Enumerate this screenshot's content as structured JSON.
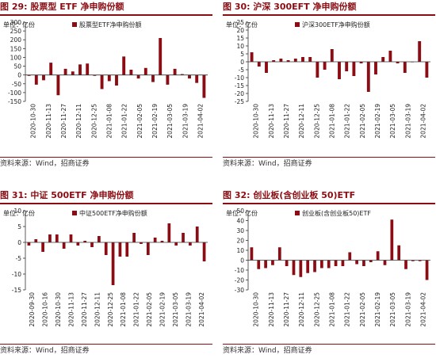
{
  "charts": [
    {
      "figure_title": "图 29:  股票型 ETF 净申购份额",
      "source": "资料来源：Wind，招商证券",
      "chart_data": {
        "type": "bar",
        "unit_label": "单位：亿份",
        "series": [
          {
            "name": "股票型ETF净申购份额",
            "color": "#8b0c12"
          }
        ],
        "yticks": [
          -150,
          -100,
          -50,
          0,
          50,
          100,
          150,
          200,
          250,
          300
        ],
        "ylim": [
          -150,
          300
        ],
        "xtick_labels": [
          "2020-10-30",
          "2020-11-13",
          "2020-11-27",
          "2020-12-11",
          "2020-12-25",
          "2021-01-08",
          "2021-01-22",
          "2021-02-05",
          "2021-02-19",
          "2021-03-05",
          "2021-03-19",
          "2021-04-02"
        ],
        "values": [
          -5,
          -55,
          -30,
          70,
          -115,
          35,
          20,
          60,
          65,
          -5,
          -80,
          -35,
          -60,
          105,
          30,
          -20,
          40,
          -40,
          210,
          -55,
          35,
          5,
          -20,
          -45,
          -130
        ]
      }
    },
    {
      "figure_title": "图 30:  沪深 300EFT 净申购份额",
      "source": "资料来源：Wind，招商证券",
      "chart_data": {
        "type": "bar",
        "unit_label": "单位：亿份",
        "series": [
          {
            "name": "沪深300ETF净申购份额",
            "color": "#8b0c12"
          }
        ],
        "yticks": [
          -25,
          -20,
          -15,
          -10,
          -5,
          0,
          5,
          10,
          15,
          20,
          25
        ],
        "ylim": [
          -25,
          25
        ],
        "xtick_labels": [
          "2020-10-30",
          "2020-11-13",
          "2020-11-27",
          "2020-12-11",
          "2020-12-25",
          "2021-01-08",
          "2021-01-22",
          "2021-02-05",
          "2021-02-19",
          "2021-03-05",
          "2021-03-19",
          "2021-04-02"
        ],
        "values": [
          6,
          -3,
          -7,
          1,
          2,
          1,
          2,
          3,
          3,
          -10,
          -5,
          8,
          -11,
          -6,
          -9,
          -1,
          -19,
          -8,
          3,
          7,
          -1,
          -7,
          0,
          13,
          -10
        ]
      }
    },
    {
      "figure_title": "图 31:  中证 500ETF 净申购份额",
      "source": "资料来源：Wind，招商证券",
      "chart_data": {
        "type": "bar",
        "unit_label": "单位：亿份",
        "series": [
          {
            "name": "中证500ETF净申购份额",
            "color": "#8b0c12"
          }
        ],
        "yticks": [
          -15,
          -10,
          -5,
          0,
          5,
          10
        ],
        "ylim": [
          -15,
          10
        ],
        "xtick_labels": [
          "2020-09-30",
          "2020-10-16",
          "2020-10-30",
          "2020-11-13",
          "2020-11-27",
          "2020-12-11",
          "2020-12-25",
          "2021-01-08",
          "2021-01-22",
          "2021-02-05",
          "2021-02-19",
          "2021-03-05",
          "2021-03-19",
          "2021-04-02"
        ],
        "values": [
          -1,
          1,
          -3,
          2.5,
          2.5,
          -2,
          2.5,
          -1,
          0.5,
          -1.5,
          2,
          -4,
          -13.5,
          -4.5,
          -4.5,
          3,
          -0.5,
          -4,
          1.5,
          0.5,
          6,
          -1,
          3,
          -1,
          5,
          -6
        ]
      }
    },
    {
      "figure_title": "图 32:  创业板(含创业板 50)ETF",
      "source": "资料来源：Wind，招商证券",
      "chart_data": {
        "type": "bar",
        "unit_label": "单位：亿份",
        "series": [
          {
            "name": "创业板(含创业板50)ETF",
            "color": "#8b0c12"
          }
        ],
        "yticks": [
          -30,
          -20,
          -10,
          0,
          10,
          20,
          30,
          40,
          50
        ],
        "ylim": [
          -30,
          50
        ],
        "xtick_labels": [
          "2020-10-30",
          "2020-11-13",
          "2020-11-27",
          "2020-12-11",
          "2020-12-25",
          "2021-01-08",
          "2021-01-22",
          "2021-02-05",
          "2021-02-19",
          "2021-03-05",
          "2021-03-19",
          "2021-04-02"
        ],
        "values": [
          13,
          -9,
          -8,
          -5,
          13,
          -6,
          -15,
          -17,
          -13,
          -12,
          -8,
          -8,
          -6,
          -6,
          8,
          -4,
          -6,
          -2,
          9,
          -5,
          41,
          15,
          -9,
          -1,
          -1,
          -20
        ]
      }
    }
  ]
}
